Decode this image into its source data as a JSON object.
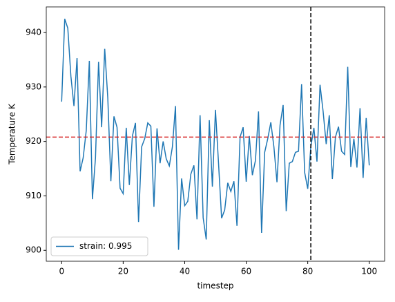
{
  "chart_data": {
    "type": "line",
    "x_label": "timestep",
    "y_label": "Temperature K",
    "x": [
      0,
      1,
      2,
      3,
      4,
      5,
      6,
      7,
      8,
      9,
      10,
      11,
      12,
      13,
      14,
      15,
      16,
      17,
      18,
      19,
      20,
      21,
      22,
      23,
      24,
      25,
      26,
      27,
      28,
      29,
      30,
      31,
      32,
      33,
      34,
      35,
      36,
      37,
      38,
      39,
      40,
      41,
      42,
      43,
      44,
      45,
      46,
      47,
      48,
      49,
      50,
      51,
      52,
      53,
      54,
      55,
      56,
      57,
      58,
      59,
      60,
      61,
      62,
      63,
      64,
      65,
      66,
      67,
      68,
      69,
      70,
      71,
      72,
      73,
      74,
      75,
      76,
      77,
      78,
      79,
      80,
      81,
      82,
      83,
      84,
      85,
      86,
      87,
      88,
      89,
      90,
      91,
      92,
      93,
      94,
      95,
      96,
      97,
      98,
      99,
      100
    ],
    "series": [
      {
        "name": "strain: 0.995",
        "color": "#1f77b4",
        "values": [
          927.3,
          942.5,
          940.8,
          932,
          926.5,
          935.3,
          914.5,
          917,
          922,
          934.8,
          909.4,
          917,
          934.6,
          922.6,
          937,
          928,
          912.7,
          924.6,
          922.6,
          911.4,
          910.4,
          922.5,
          912,
          921,
          923.4,
          905.2,
          919,
          920.5,
          923.4,
          922.8,
          908,
          922.4,
          916,
          920,
          916.8,
          915.5,
          919,
          926.5,
          900.1,
          913.2,
          908.2,
          909,
          914,
          915.6,
          905.7,
          924.8,
          906,
          902,
          923.9,
          911.7,
          925.8,
          916,
          905.9,
          907.4,
          912.4,
          910.8,
          912.7,
          904.5,
          920.8,
          922.6,
          912.6,
          921,
          913.8,
          916.5,
          925.5,
          903.2,
          918,
          920.5,
          923.5,
          919,
          912.5,
          923,
          926.7,
          907.2,
          916,
          916.3,
          918,
          918.2,
          930.5,
          914.3,
          911.3,
          919,
          922.5,
          916.3,
          930.4,
          925.5,
          919.5,
          924.8,
          913.1,
          920.8,
          922.7,
          918.2,
          917.6,
          933.7,
          915.3,
          920.5,
          915.2,
          926.1,
          913.3,
          924.3,
          915.6
        ]
      }
    ],
    "reference_lines": [
      {
        "axis": "y",
        "value": 920.8,
        "color": "#d62728"
      },
      {
        "axis": "x",
        "value": 81,
        "color": "#000000"
      }
    ],
    "xlim": [
      -5,
      105
    ],
    "xticks": [
      0,
      20,
      40,
      60,
      80,
      100
    ],
    "ylim": [
      898,
      944.7
    ],
    "yticks": [
      900,
      910,
      920,
      930,
      940
    ],
    "legend_position": "lower-left"
  }
}
